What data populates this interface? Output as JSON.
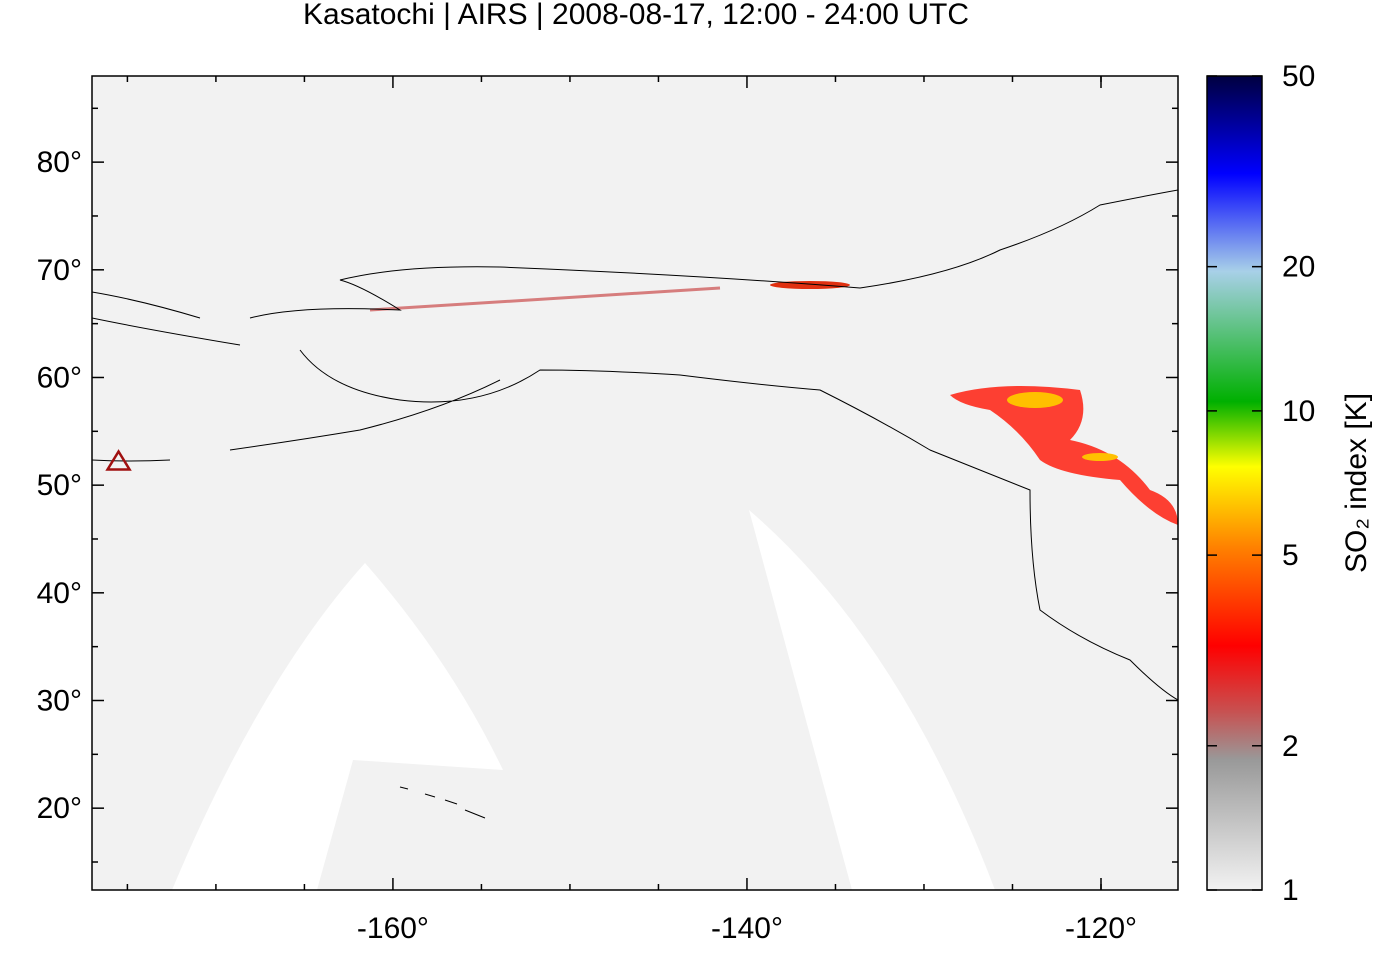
{
  "chart_data": {
    "type": "map",
    "title": "Kasatochi | AIRS | 2008-08-17, 12:00 - 24:00 UTC",
    "xlim": [
      -177,
      -115.65
    ],
    "ylim": [
      12.4,
      88
    ],
    "xticks": [
      {
        "value": -160,
        "label": "-160°"
      },
      {
        "value": -140,
        "label": "-140°"
      },
      {
        "value": -120,
        "label": "-120°"
      }
    ],
    "yticks": [
      {
        "value": 20,
        "label": "20°"
      },
      {
        "value": 30,
        "label": "30°"
      },
      {
        "value": 40,
        "label": "40°"
      },
      {
        "value": 50,
        "label": "50°"
      },
      {
        "value": 60,
        "label": "60°"
      },
      {
        "value": 70,
        "label": "70°"
      },
      {
        "value": 80,
        "label": "80°"
      }
    ],
    "x_minor_ticks": [
      -175,
      -170,
      -165,
      -155,
      -150,
      -145,
      -135,
      -130,
      -125,
      -120
    ],
    "y_minor_ticks": [
      15,
      25,
      35,
      45,
      55,
      65,
      75,
      85
    ],
    "volcano": {
      "lon": -175.5,
      "lat": 52.2,
      "color": "#a01010"
    },
    "colorbar": {
      "label": "SO₂ index [K]",
      "lim": [
        1,
        50
      ],
      "log": true,
      "ticks": [
        1,
        2,
        5,
        10,
        20,
        50
      ]
    }
  }
}
